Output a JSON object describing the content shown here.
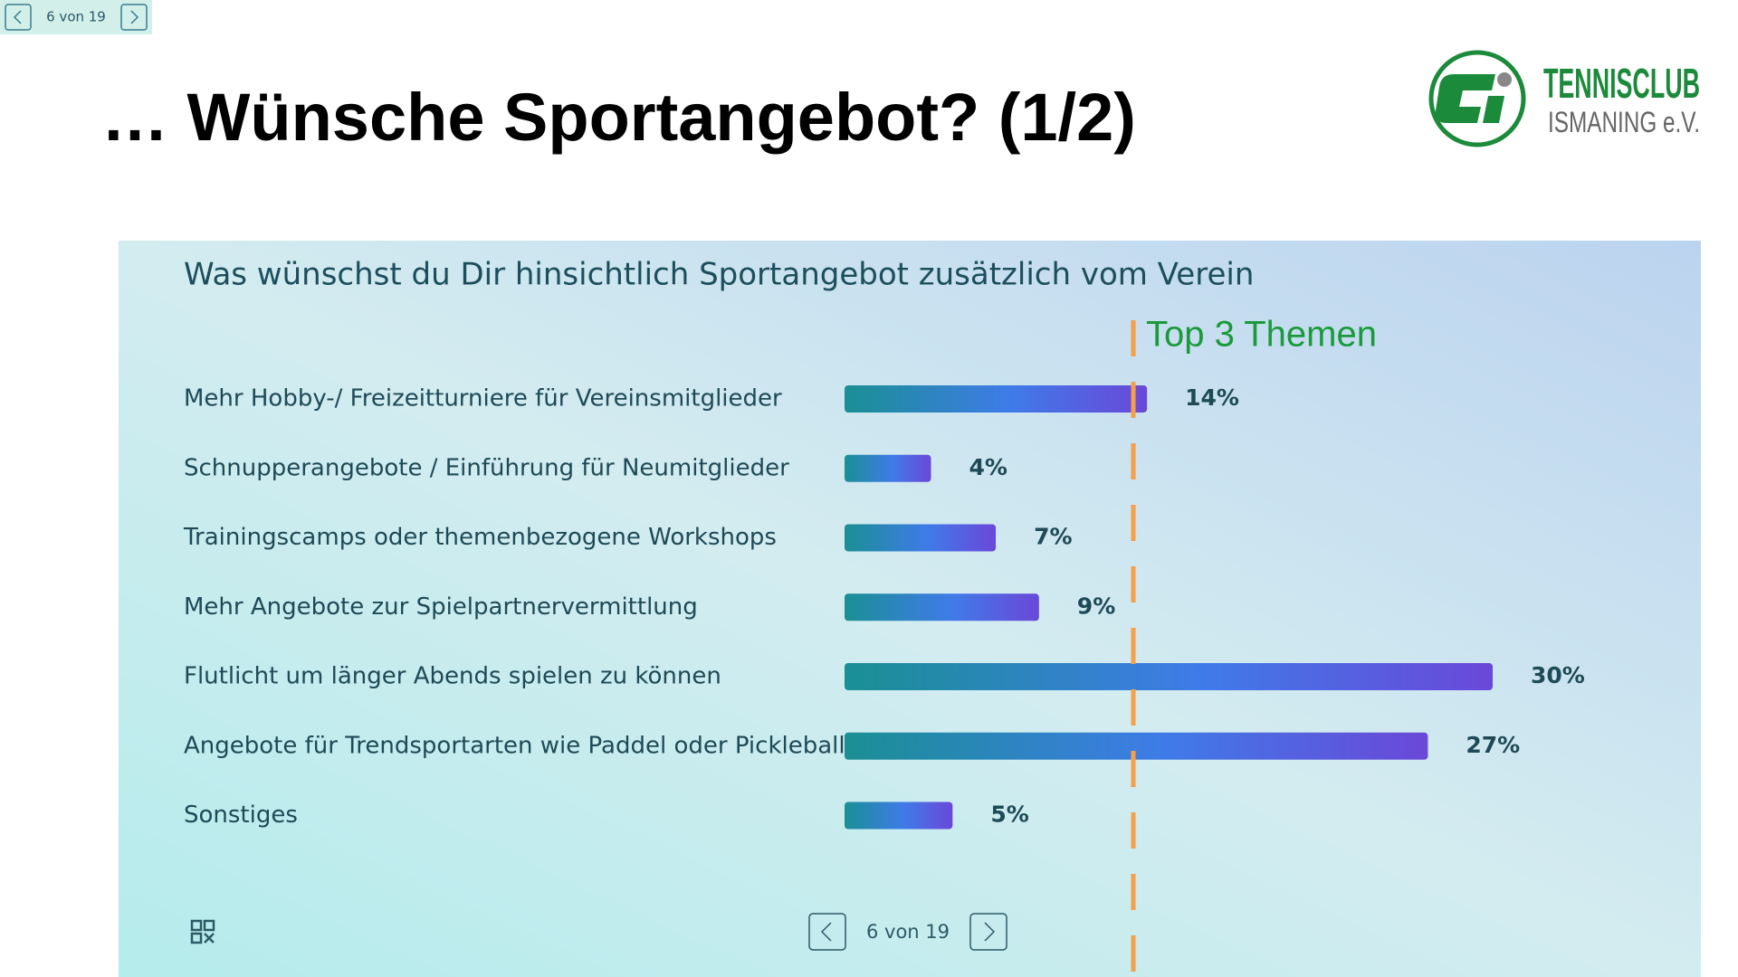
{
  "nav_top": {
    "page": "6 von 19"
  },
  "slide_title": "… Wünsche Sportangebot? (1/2)",
  "logo": {
    "line1": "TENNISCLUB",
    "line2": "ISMANING e.V."
  },
  "annotation": "Top 3 Themen",
  "chart_data": {
    "type": "bar",
    "orientation": "horizontal",
    "title": "Was wünschst du Dir hinsichtlich Sportangebot zusätzlich vom Verein",
    "categories": [
      "Mehr Hobby-/ Freizeitturniere für Vereinsmitglieder",
      "Schnupperangebote / Einführung für Neumitglieder",
      "Trainingscamps oder themenbezogene Workshops",
      "Mehr Angebote zur Spielpartnervermittlung",
      "Flutlicht um länger Abends spielen zu können",
      "Angebote für Trendsportarten wie Paddel oder Pickleball",
      "Sonstiges"
    ],
    "values": [
      14,
      4,
      7,
      9,
      30,
      27,
      5
    ],
    "value_labels": [
      "14%",
      "4%",
      "7%",
      "9%",
      "30%",
      "27%",
      "5%"
    ]
  },
  "nav_bottom": {
    "page": "6 von 19"
  }
}
